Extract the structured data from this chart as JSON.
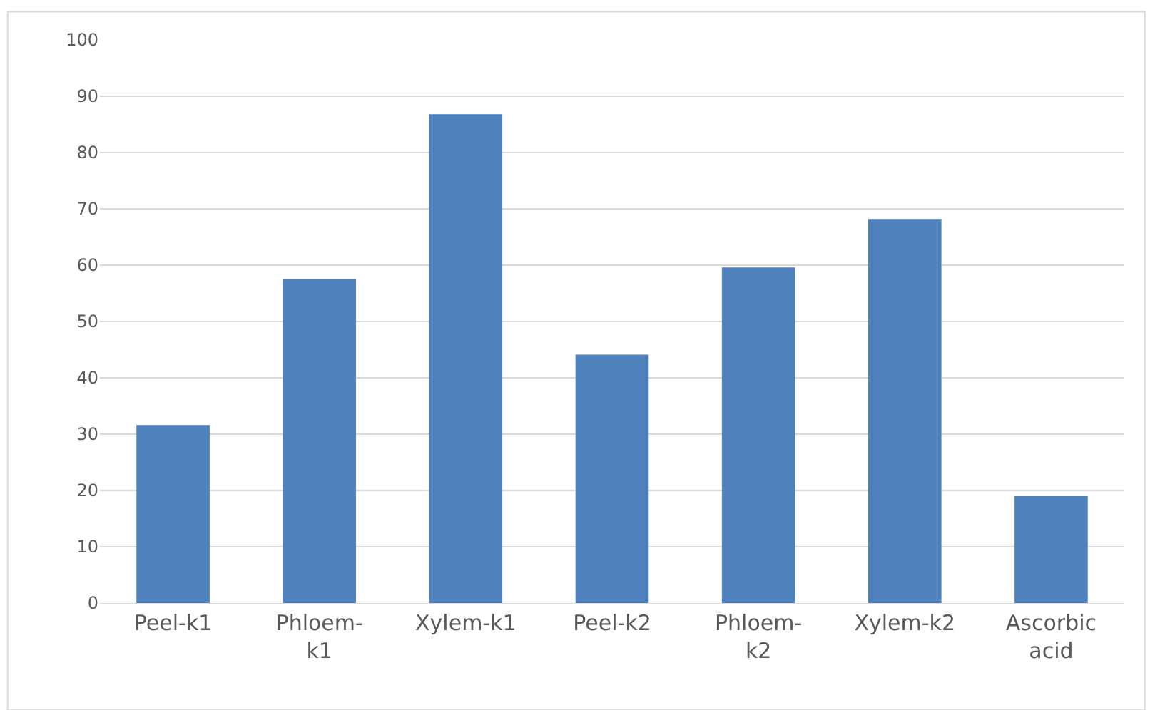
{
  "chart_data": {
    "type": "bar",
    "categories": [
      "Peel-k1",
      "Phloem-k1",
      "Xylem-k1",
      "Peel-k2",
      "Phloem-k2",
      "Xylem-k2",
      "Ascorbic acid"
    ],
    "values": [
      31.6,
      57.5,
      86.8,
      44.1,
      59.6,
      68.2,
      19.0
    ],
    "color": "#4f81bd",
    "ylim": [
      0,
      100
    ],
    "yticks": [
      0,
      10,
      20,
      30,
      40,
      50,
      60,
      70,
      80,
      90,
      100
    ],
    "grid": "y"
  }
}
